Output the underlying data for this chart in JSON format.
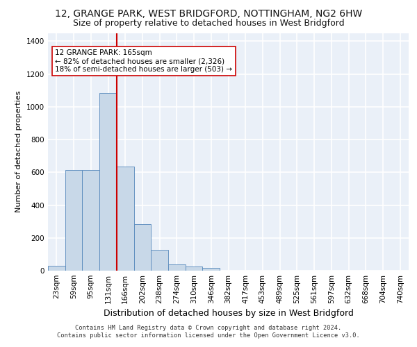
{
  "title1": "12, GRANGE PARK, WEST BRIDGFORD, NOTTINGHAM, NG2 6HW",
  "title2": "Size of property relative to detached houses in West Bridgford",
  "xlabel": "Distribution of detached houses by size in West Bridgford",
  "ylabel": "Number of detached properties",
  "bins": [
    "23sqm",
    "59sqm",
    "95sqm",
    "131sqm",
    "166sqm",
    "202sqm",
    "238sqm",
    "274sqm",
    "310sqm",
    "346sqm",
    "382sqm",
    "417sqm",
    "453sqm",
    "489sqm",
    "525sqm",
    "561sqm",
    "597sqm",
    "632sqm",
    "668sqm",
    "704sqm",
    "740sqm"
  ],
  "values": [
    30,
    615,
    615,
    1085,
    635,
    285,
    125,
    40,
    25,
    15,
    0,
    0,
    0,
    0,
    0,
    0,
    0,
    0,
    0,
    0,
    0
  ],
  "bar_color": "#c8d8e8",
  "bar_edge_color": "#5588bb",
  "vline_index": 4,
  "annotation_line1": "12 GRANGE PARK: 165sqm",
  "annotation_line2": "← 82% of detached houses are smaller (2,326)",
  "annotation_line3": "18% of semi-detached houses are larger (503) →",
  "vline_color": "#cc0000",
  "annotation_box_color": "#ffffff",
  "annotation_box_edge": "#cc0000",
  "footnote1": "Contains HM Land Registry data © Crown copyright and database right 2024.",
  "footnote2": "Contains public sector information licensed under the Open Government Licence v3.0.",
  "ylim": [
    0,
    1450
  ],
  "yticks": [
    0,
    200,
    400,
    600,
    800,
    1000,
    1200,
    1400
  ],
  "bg_color": "#eaf0f8",
  "grid_color": "#ffffff",
  "title1_fontsize": 10,
  "title2_fontsize": 9,
  "xlabel_fontsize": 9,
  "ylabel_fontsize": 8,
  "tick_fontsize": 7.5
}
